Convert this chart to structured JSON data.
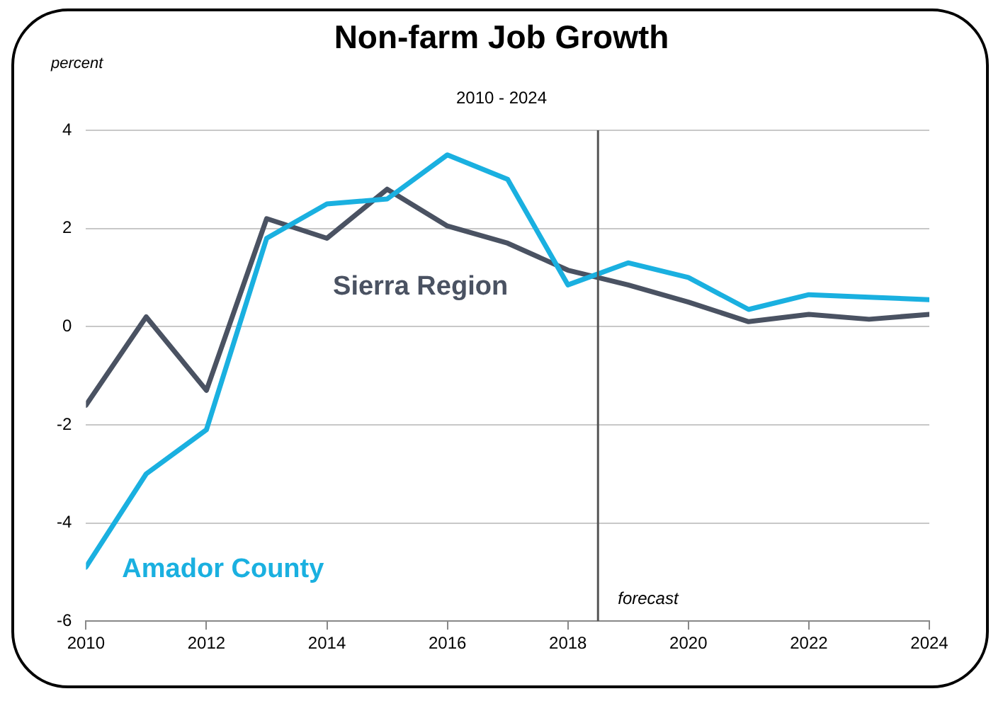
{
  "chart_data": {
    "type": "line",
    "title": "Non-farm Job Growth",
    "subtitle": "2010 - 2024",
    "ylabel": "percent",
    "x": [
      2010,
      2011,
      2012,
      2013,
      2014,
      2015,
      2016,
      2017,
      2018,
      2019,
      2020,
      2021,
      2022,
      2023,
      2024
    ],
    "series": [
      {
        "name": "Amador County",
        "color": "#1ab0e0",
        "values": [
          -4.9,
          -3.0,
          -2.1,
          1.8,
          2.5,
          2.6,
          3.5,
          3.0,
          0.85,
          1.3,
          1.0,
          0.35,
          0.65,
          0.6,
          0.55
        ]
      },
      {
        "name": "Sierra Region",
        "color": "#4a5262",
        "values": [
          -1.6,
          0.2,
          -1.3,
          2.2,
          1.8,
          2.8,
          2.05,
          1.7,
          1.15,
          0.85,
          0.5,
          0.1,
          0.25,
          0.15,
          0.25
        ]
      }
    ],
    "xlim": [
      2010,
      2024
    ],
    "xticks": [
      2010,
      2012,
      2014,
      2016,
      2018,
      2020,
      2022,
      2024
    ],
    "ylim": [
      -6,
      4
    ],
    "yticks": [
      -6,
      -4,
      -2,
      0,
      2,
      4
    ],
    "ref_lines": [
      {
        "axis": "x",
        "value": 2018.5,
        "label": "forecast",
        "color": "#555555"
      }
    ],
    "grid": "y",
    "legend": false,
    "marker": "none",
    "line_style": "solid"
  }
}
